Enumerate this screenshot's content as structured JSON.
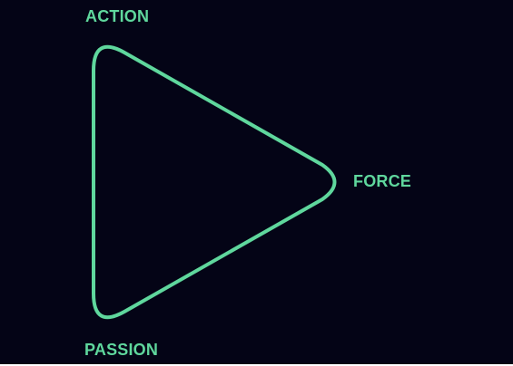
{
  "colors": {
    "background": "#040416",
    "accent": "#5fd79d"
  },
  "diagram": {
    "shape": "rounded-triangle",
    "labels": {
      "top": "ACTION",
      "right": "FORCE",
      "bottom": "PASSION"
    }
  }
}
